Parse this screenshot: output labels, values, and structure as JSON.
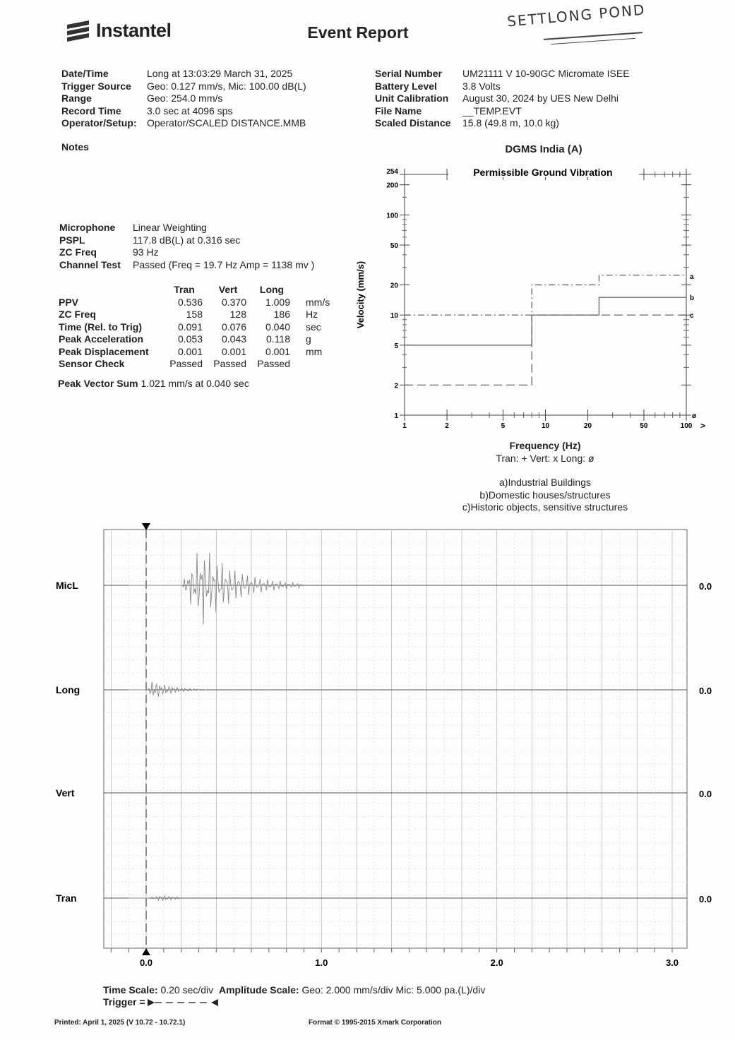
{
  "header": {
    "brand": "Instantel",
    "title": "Event Report",
    "handwritten_note": "SETTLONG POND"
  },
  "left_info": [
    {
      "label": "Date/Time",
      "value": "Long at 13:03:29 March 31, 2025"
    },
    {
      "label": "Trigger Source",
      "value": "Geo: 0.127 mm/s, Mic: 100.00 dB(L)"
    },
    {
      "label": "Range",
      "value": "Geo: 254.0 mm/s"
    },
    {
      "label": "Record Time",
      "value": "3.0 sec at 4096 sps"
    },
    {
      "label": "Operator/Setup:",
      "value": "Operator/SCALED DISTANCE.MMB"
    }
  ],
  "right_info": [
    {
      "label": "Serial Number",
      "value": "UM21111 V 10-90GC Micromate ISEE"
    },
    {
      "label": "Battery Level",
      "value": "3.8 Volts"
    },
    {
      "label": "Unit Calibration",
      "value": "August 30, 2024 by UES New Delhi"
    },
    {
      "label": "File Name",
      "value": "__TEMP.EVT"
    },
    {
      "label": "Scaled Distance",
      "value": "15.8 (49.8 m, 10.0 kg)"
    }
  ],
  "notes_label": "Notes",
  "microphone": [
    {
      "label": "Microphone",
      "value": "Linear Weighting"
    },
    {
      "label": "PSPL",
      "value": "117.8 dB(L) at 0.316 sec"
    },
    {
      "label": "ZC Freq",
      "value": "93 Hz"
    },
    {
      "label": "Channel Test",
      "value": "Passed (Freq = 19.7 Hz Amp = 1138 mv )"
    }
  ],
  "ppv_table": {
    "columns": [
      "Tran",
      "Vert",
      "Long"
    ],
    "rows": [
      {
        "label": "PPV",
        "values": [
          "0.536",
          "0.370",
          "1.009"
        ],
        "unit": "mm/s"
      },
      {
        "label": "ZC Freq",
        "values": [
          "158",
          "128",
          "186"
        ],
        "unit": "Hz"
      },
      {
        "label": "Time (Rel. to Trig)",
        "values": [
          "0.091",
          "0.076",
          "0.040"
        ],
        "unit": "sec"
      },
      {
        "label": "Peak Acceleration",
        "values": [
          "0.053",
          "0.043",
          "0.118"
        ],
        "unit": "g"
      },
      {
        "label": "Peak Displacement",
        "values": [
          "0.001",
          "0.001",
          "0.001"
        ],
        "unit": "mm"
      },
      {
        "label": "Sensor Check",
        "values": [
          "Passed",
          "Passed",
          "Passed"
        ],
        "unit": ""
      }
    ]
  },
  "peak_vector_sum": {
    "label": "Peak Vector Sum",
    "value": "1.021 mm/s at 0.040 sec"
  },
  "chart_data": [
    {
      "type": "line",
      "title": "DGMS India (A)",
      "subtitle": "Permissible Ground Vibration",
      "xlabel": "Frequency (Hz)",
      "ylabel": "Velocity (mm/s)",
      "xscale": "log",
      "yscale": "log",
      "xlim": [
        1,
        100
      ],
      "ylim": [
        1,
        254
      ],
      "x_ticks": [
        "1",
        "2",
        "5",
        "10",
        "20",
        "50",
        "100"
      ],
      "y_ticks": [
        "1",
        "2",
        "5",
        "10",
        "20",
        "50",
        "100",
        "200",
        "254"
      ],
      "grid": false,
      "legend_text": "Tran: +  Vert: x  Long: ø",
      "series": [
        {
          "name": "a",
          "style": "dash-dot",
          "x": [
            1,
            8,
            8,
            24,
            24,
            100
          ],
          "y": [
            10,
            10,
            20,
            20,
            25,
            25
          ]
        },
        {
          "name": "b",
          "style": "solid",
          "x": [
            1,
            8,
            8,
            24,
            24,
            100
          ],
          "y": [
            5,
            5,
            10,
            10,
            15,
            15
          ]
        },
        {
          "name": "c",
          "style": "dashed",
          "x": [
            1,
            8,
            8,
            100
          ],
          "y": [
            2,
            2,
            10,
            10
          ]
        }
      ],
      "end_marker": "ø",
      "axis_arrow": ">",
      "footnotes": [
        "a)Industrial Buildings",
        "b)Domestic houses/structures",
        "c)Historic objects, sensitive structures"
      ]
    },
    {
      "type": "line",
      "title": "",
      "xlabel": "",
      "xlim": [
        0,
        3.0
      ],
      "x_ticks": [
        "0.0",
        "1.0",
        "2.0",
        "3.0"
      ],
      "grid": true,
      "channels": [
        {
          "name": "MicL",
          "baseline": "0.0",
          "peak_time": 0.316,
          "activity_end": 0.9,
          "relative_peak": 1.0
        },
        {
          "name": "Long",
          "baseline": "0.0",
          "peak_time": 0.04,
          "activity_end": 0.35,
          "relative_peak": 0.25
        },
        {
          "name": "Vert",
          "baseline": "0.0",
          "peak_time": 0.076,
          "activity_end": 0.0,
          "relative_peak": 0.0
        },
        {
          "name": "Tran",
          "baseline": "0.0",
          "peak_time": 0.091,
          "activity_end": 0.2,
          "relative_peak": 0.08
        }
      ],
      "trigger_time": 0.0
    }
  ],
  "scales": {
    "time_label": "Time Scale:",
    "time_value": "0.20 sec/div",
    "amp_label": "Amplitude Scale:",
    "amp_value": "Geo: 2.000 mm/s/div Mic: 5.000 pa.(L)/div",
    "trigger_label": "Trigger = "
  },
  "footer": {
    "printed": "Printed: April 1, 2025 (V 10.72 - 10.72.1)",
    "format": "Format © 1995-2015 Xmark Corporation"
  }
}
